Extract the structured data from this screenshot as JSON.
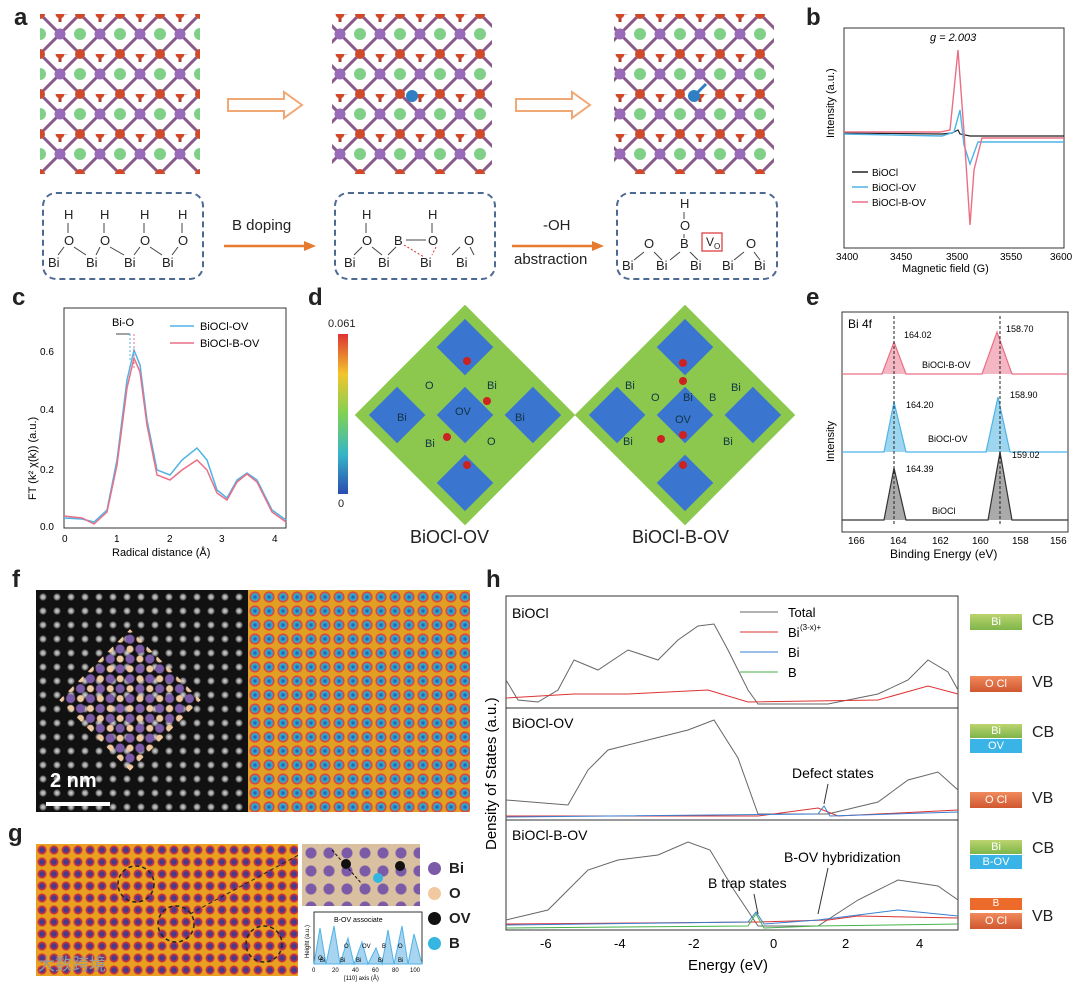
{
  "panel_labels": {
    "a": "a",
    "b": "b",
    "c": "c",
    "d": "d",
    "e": "e",
    "f": "f",
    "g": "g",
    "h": "h"
  },
  "panel_a": {
    "arrow1": "B doping",
    "arrow2": "-OH",
    "arrow2b": "abstraction",
    "s1": {
      "H": "H",
      "O": "O",
      "Bi": "Bi"
    },
    "s2": {
      "B": "B"
    },
    "s3": {
      "Vo": "V",
      "Vo_sub": "O"
    }
  },
  "panel_b": {
    "g_label": "g = 2.003",
    "xlabel": "Magnetic field (G)",
    "ylabel": "Intensity (a.u.)",
    "xticks": [
      "3400",
      "3450",
      "3500",
      "3550",
      "3600"
    ],
    "legend": [
      "BiOCl",
      "BiOCl-OV",
      "BiOCl-B-OV"
    ],
    "colors": [
      "#222222",
      "#4fb3e6",
      "#ea6f85"
    ]
  },
  "panel_c": {
    "xlabel": "Radical distance (Å)",
    "ylabel": "FT (k² χ(k)) (a.u.)",
    "xticks": [
      "0",
      "1",
      "2",
      "3",
      "4"
    ],
    "yticks": [
      "0.0",
      "0.2",
      "0.4",
      "0.6"
    ],
    "peak_label": "Bi-O",
    "legend": [
      "BiOCl-OV",
      "BiOCl-B-OV"
    ]
  },
  "panel_d": {
    "scale_max": "0.061",
    "scale_min": "0",
    "left_title": "BiOCl-OV",
    "right_title": "BiOCl-B-OV",
    "atoms": {
      "Bi": "Bi",
      "O": "O",
      "OV": "OV",
      "B": "B"
    }
  },
  "panel_e": {
    "title": "Bi 4f",
    "xlabel": "Binding Energy (eV)",
    "ylabel": "Intensity",
    "xticks": [
      "166",
      "164",
      "162",
      "160",
      "158",
      "156"
    ],
    "traces": [
      {
        "name": "BiOCl-B-OV",
        "p1": "164.02",
        "p2": "158.70"
      },
      {
        "name": "BiOCl-OV",
        "p1": "164.20",
        "p2": "158.90"
      },
      {
        "name": "BiOCl",
        "p1": "164.39",
        "p2": "159.02"
      }
    ]
  },
  "panel_f": {
    "scale": "2 nm"
  },
  "panel_g": {
    "legend": [
      "Bi",
      "O",
      "OV",
      "B"
    ],
    "inset_title": "B-OV associate",
    "inset_xlabel": "[110] axis (Å)",
    "inset_ylabel": "Height (a.u.)",
    "inset_xticks": [
      "0",
      "20",
      "40",
      "60",
      "80",
      "100"
    ],
    "inset_atoms": [
      "O",
      "O",
      "OV",
      "B",
      "O",
      "Bi",
      "Bi",
      "Bi",
      "Bi",
      "Bi"
    ],
    "watermark": "大数跨境"
  },
  "panel_h": {
    "xlabel": "Energy (eV)",
    "ylabel": "Density of States (a.u.)",
    "xticks": [
      "-6",
      "-4",
      "-2",
      "0",
      "2",
      "4"
    ],
    "rows": [
      "BiOCl",
      "BiOCl-OV",
      "BiOCl-B-OV"
    ],
    "legend": [
      "Total",
      "Bi(3-x)+",
      "Bi",
      "B"
    ],
    "legend_sup": "(3-x)+",
    "annotations": {
      "defect": "Defect states",
      "btrap": "B trap states",
      "hybrid": "B-OV hybridization"
    },
    "bands": {
      "CB": "CB",
      "VB": "VB",
      "Bi": "Bi",
      "OCl": "O  Cl",
      "OV": "OV",
      "BOV": "B-OV",
      "B": "B"
    }
  }
}
